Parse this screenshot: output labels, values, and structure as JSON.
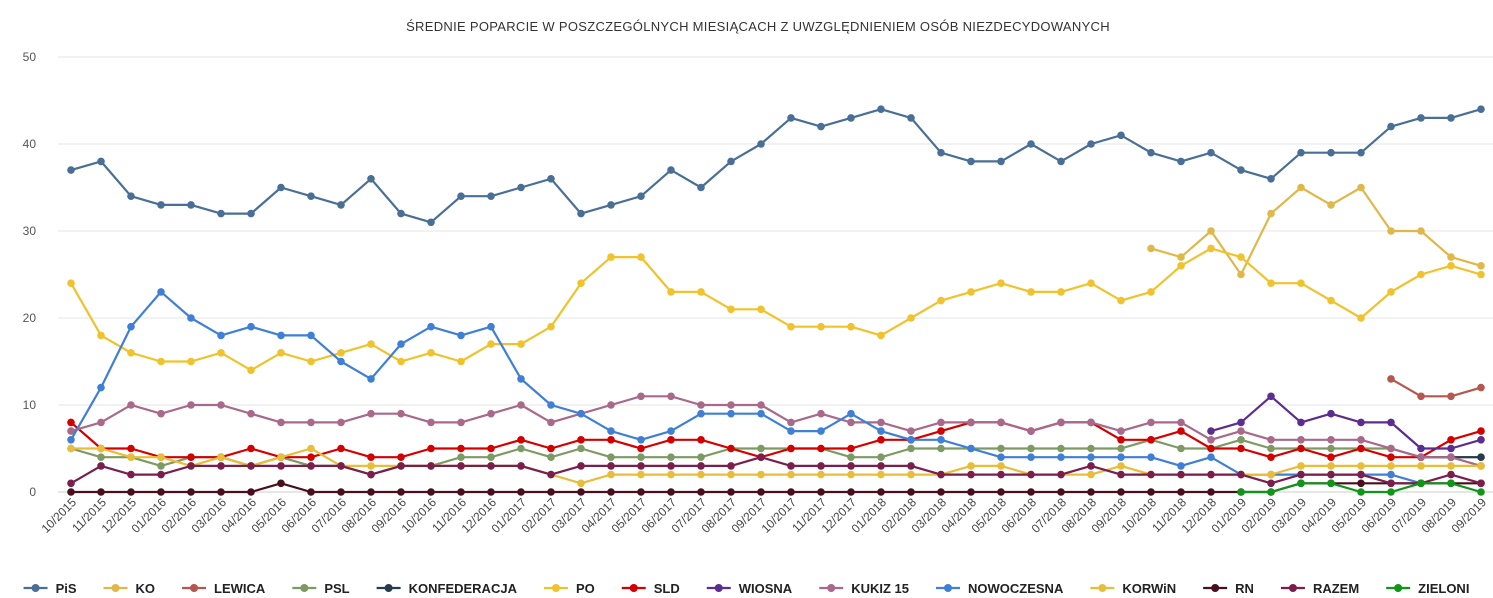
{
  "chart_data": {
    "type": "line",
    "title": "ŚREDNIE POPARCIE W POSZCZEGÓLNYCH MIESIĄCACH Z UWZGLĘDNIENIEM OSÓB NIEZDECYDOWANYCH",
    "xlabel": "",
    "ylabel": "",
    "ylim": [
      0,
      50
    ],
    "yticks": [
      0,
      10,
      20,
      30,
      40,
      50
    ],
    "grid": true,
    "legend_position": "bottom",
    "categories": [
      "10/2015",
      "11/2015",
      "12/2015",
      "01/2016",
      "02/2016",
      "03/2016",
      "04/2016",
      "05/2016",
      "06/2016",
      "07/2016",
      "08/2016",
      "09/2016",
      "10/2016",
      "11/2016",
      "12/2016",
      "01/2017",
      "02/2017",
      "03/2017",
      "04/2017",
      "05/2017",
      "06/2017",
      "07/2017",
      "08/2017",
      "09/2017",
      "10/2017",
      "11/2017",
      "12/2017",
      "01/2018",
      "02/2018",
      "03/2018",
      "04/2018",
      "05/2018",
      "06/2018",
      "07/2018",
      "08/2018",
      "09/2018",
      "10/2018",
      "11/2018",
      "12/2018",
      "01/2019",
      "02/2019",
      "03/2019",
      "04/2019",
      "05/2019",
      "06/2019",
      "07/2019",
      "08/2019",
      "09/2019"
    ],
    "series": [
      {
        "name": "PiS",
        "color": "#4a6f96",
        "values": [
          37,
          38,
          34,
          33,
          33,
          32,
          32,
          35,
          34,
          33,
          36,
          32,
          31,
          34,
          34,
          35,
          36,
          32,
          33,
          34,
          37,
          35,
          38,
          40,
          43,
          42,
          43,
          44,
          43,
          39,
          38,
          38,
          40,
          38,
          40,
          41,
          39,
          38,
          39,
          37,
          36,
          39,
          39,
          39,
          42,
          43,
          43,
          44
        ]
      },
      {
        "name": "KO",
        "color": "#e0b84a",
        "values": [
          null,
          null,
          null,
          null,
          null,
          null,
          null,
          null,
          null,
          null,
          null,
          null,
          null,
          null,
          null,
          null,
          null,
          null,
          null,
          null,
          null,
          null,
          null,
          null,
          null,
          null,
          null,
          null,
          null,
          null,
          null,
          null,
          null,
          null,
          null,
          null,
          28,
          27,
          30,
          25,
          32,
          35,
          33,
          35,
          30,
          30,
          27,
          26
        ]
      },
      {
        "name": "LEWICA",
        "color": "#b5574f",
        "values": [
          null,
          null,
          null,
          null,
          null,
          null,
          null,
          null,
          null,
          null,
          null,
          null,
          null,
          null,
          null,
          null,
          null,
          null,
          null,
          null,
          null,
          null,
          null,
          null,
          null,
          null,
          null,
          null,
          null,
          null,
          null,
          null,
          null,
          null,
          null,
          null,
          null,
          null,
          null,
          null,
          null,
          null,
          null,
          null,
          13,
          11,
          11,
          12
        ]
      },
      {
        "name": "PSL",
        "color": "#7d9a63",
        "values": [
          5,
          4,
          4,
          3,
          4,
          4,
          3,
          4,
          3,
          3,
          2,
          3,
          3,
          4,
          4,
          5,
          4,
          5,
          4,
          4,
          4,
          4,
          5,
          5,
          5,
          5,
          4,
          4,
          5,
          5,
          5,
          5,
          5,
          5,
          5,
          5,
          6,
          5,
          5,
          6,
          5,
          5,
          5,
          5,
          5,
          4,
          4,
          4
        ]
      },
      {
        "name": "KONFEDERACJA",
        "color": "#263a50",
        "values": [
          null,
          null,
          null,
          null,
          null,
          null,
          null,
          null,
          null,
          null,
          null,
          null,
          null,
          null,
          null,
          null,
          null,
          null,
          null,
          null,
          null,
          null,
          null,
          null,
          null,
          null,
          null,
          null,
          null,
          null,
          null,
          null,
          null,
          null,
          null,
          null,
          null,
          null,
          null,
          null,
          null,
          null,
          null,
          null,
          null,
          4,
          4,
          4
        ]
      },
      {
        "name": "PO",
        "color": "#f0c22b",
        "values": [
          24,
          18,
          16,
          15,
          15,
          16,
          14,
          16,
          15,
          16,
          17,
          15,
          16,
          15,
          17,
          17,
          19,
          24,
          27,
          27,
          23,
          23,
          21,
          21,
          19,
          19,
          19,
          18,
          20,
          22,
          23,
          24,
          23,
          23,
          24,
          22,
          23,
          26,
          28,
          27,
          24,
          24,
          22,
          20,
          23,
          25,
          26,
          25
        ]
      },
      {
        "name": "SLD",
        "color": "#d40000",
        "values": [
          8,
          5,
          5,
          4,
          4,
          4,
          5,
          4,
          4,
          5,
          4,
          4,
          5,
          5,
          5,
          6,
          5,
          6,
          6,
          5,
          6,
          6,
          5,
          4,
          5,
          5,
          5,
          6,
          6,
          7,
          8,
          8,
          7,
          8,
          8,
          6,
          6,
          7,
          5,
          5,
          4,
          5,
          4,
          5,
          4,
          4,
          6,
          7
        ]
      },
      {
        "name": "WIOSNA",
        "color": "#5b2d8e",
        "values": [
          null,
          null,
          null,
          null,
          null,
          null,
          null,
          null,
          null,
          null,
          null,
          null,
          null,
          null,
          null,
          null,
          null,
          null,
          null,
          null,
          null,
          null,
          null,
          null,
          null,
          null,
          null,
          null,
          null,
          null,
          null,
          null,
          null,
          null,
          null,
          null,
          null,
          null,
          7,
          8,
          11,
          8,
          9,
          8,
          8,
          5,
          5,
          6
        ]
      },
      {
        "name": "KUKIZ 15",
        "color": "#a8698a",
        "values": [
          7,
          8,
          10,
          9,
          10,
          10,
          9,
          8,
          8,
          8,
          9,
          9,
          8,
          8,
          9,
          10,
          8,
          9,
          10,
          11,
          11,
          10,
          10,
          10,
          8,
          9,
          8,
          8,
          7,
          8,
          8,
          8,
          7,
          8,
          8,
          7,
          8,
          8,
          6,
          7,
          6,
          6,
          6,
          6,
          5,
          4,
          4,
          3
        ]
      },
      {
        "name": "NOWOCZESNA",
        "color": "#3f7fd6",
        "values": [
          6,
          12,
          19,
          23,
          20,
          18,
          19,
          18,
          18,
          15,
          13,
          17,
          19,
          18,
          19,
          13,
          10,
          9,
          7,
          6,
          7,
          9,
          9,
          9,
          7,
          7,
          9,
          7,
          6,
          6,
          5,
          4,
          4,
          4,
          4,
          4,
          4,
          3,
          4,
          2,
          2,
          2,
          2,
          2,
          2,
          1,
          null,
          null
        ]
      },
      {
        "name": "KORWiN",
        "color": "#e8bd3a",
        "values": [
          5,
          5,
          4,
          4,
          3,
          4,
          3,
          4,
          5,
          3,
          3,
          3,
          3,
          3,
          3,
          3,
          2,
          1,
          2,
          2,
          2,
          2,
          2,
          2,
          2,
          2,
          2,
          2,
          2,
          2,
          3,
          3,
          2,
          2,
          2,
          3,
          2,
          2,
          2,
          2,
          2,
          3,
          3,
          3,
          3,
          3,
          3,
          3
        ]
      },
      {
        "name": "RN",
        "color": "#4a0f1f",
        "values": [
          0,
          0,
          0,
          0,
          0,
          0,
          0,
          1,
          0,
          0,
          0,
          0,
          0,
          0,
          0,
          0,
          0,
          0,
          0,
          0,
          0,
          0,
          0,
          0,
          0,
          0,
          0,
          0,
          0,
          0,
          0,
          0,
          0,
          0,
          0,
          0,
          0,
          0,
          0,
          0,
          0,
          1,
          1,
          1,
          1,
          1,
          1,
          1
        ]
      },
      {
        "name": "RAZEM",
        "color": "#7a1e4c",
        "values": [
          1,
          3,
          2,
          2,
          3,
          3,
          3,
          3,
          3,
          3,
          2,
          3,
          3,
          3,
          3,
          3,
          2,
          3,
          3,
          3,
          3,
          3,
          3,
          4,
          3,
          3,
          3,
          3,
          3,
          2,
          2,
          2,
          2,
          2,
          3,
          2,
          2,
          2,
          2,
          2,
          1,
          2,
          2,
          2,
          1,
          1,
          2,
          1
        ]
      },
      {
        "name": "ZIELONI",
        "color": "#109618",
        "values": [
          null,
          null,
          null,
          null,
          null,
          null,
          null,
          null,
          null,
          null,
          null,
          null,
          null,
          null,
          null,
          null,
          null,
          null,
          null,
          null,
          null,
          null,
          null,
          null,
          null,
          null,
          null,
          null,
          null,
          null,
          null,
          null,
          null,
          null,
          null,
          null,
          null,
          null,
          null,
          0,
          0,
          1,
          1,
          0,
          0,
          1,
          1,
          0
        ]
      }
    ]
  }
}
